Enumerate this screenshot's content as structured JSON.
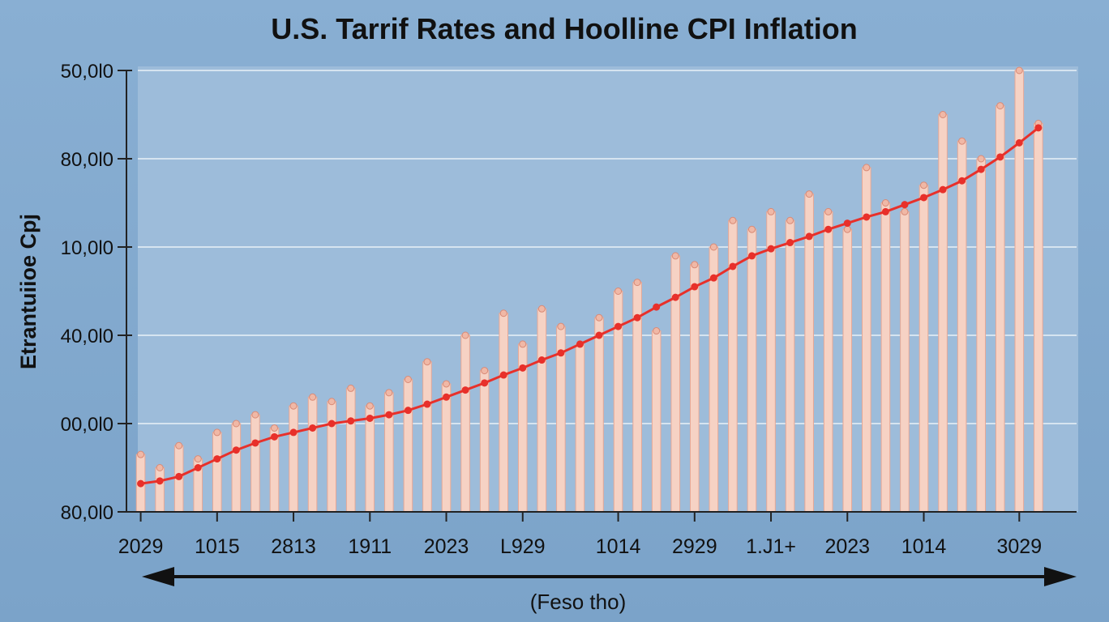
{
  "chart_data": {
    "type": "bar-line",
    "title": "U.S. Tarrif Rates and Hoolline CPI Inflation",
    "y_label": "Etrantuiioe Cpj",
    "x_label": "(Feso tho)",
    "xlim": [
      0,
      50
    ],
    "xticks": [
      {
        "value": 1,
        "label": "2029"
      },
      {
        "value": 5,
        "label": "1015"
      },
      {
        "value": 9,
        "label": "2813"
      },
      {
        "value": 13,
        "label": "1911"
      },
      {
        "value": 17,
        "label": "2023"
      },
      {
        "value": 21,
        "label": "L929"
      },
      {
        "value": 26,
        "label": "1014"
      },
      {
        "value": 30,
        "label": "2929"
      },
      {
        "value": 34,
        "label": "1.J1+"
      },
      {
        "value": 38,
        "label": "2023"
      },
      {
        "value": 42,
        "label": "1014"
      },
      {
        "value": 47,
        "label": "3029"
      }
    ],
    "ylim": [
      0,
      5
    ],
    "yticks": [
      {
        "value": 0,
        "label": "80,0l0"
      },
      {
        "value": 1,
        "label": "00,0l0"
      },
      {
        "value": 2,
        "label": "40,0l0"
      },
      {
        "value": 3,
        "label": "10,0l0"
      },
      {
        "value": 4,
        "label": "80,0l0"
      },
      {
        "value": 5,
        "label": "50,0l0"
      }
    ],
    "grid": true,
    "x": [
      1,
      2,
      3,
      4,
      5,
      6,
      7,
      8,
      9,
      10,
      11,
      12,
      13,
      14,
      15,
      16,
      17,
      18,
      19,
      20,
      21,
      22,
      23,
      24,
      25,
      26,
      27,
      28,
      29,
      30,
      31,
      32,
      33,
      34,
      35,
      36,
      37,
      38,
      39,
      40,
      41,
      42,
      43,
      44,
      45,
      46,
      47,
      48
    ],
    "series": [
      {
        "kind": "bar",
        "color": "#f6d2c4",
        "values": [
          0.65,
          0.5,
          0.75,
          0.6,
          0.9,
          1.0,
          1.1,
          0.95,
          1.2,
          1.3,
          1.25,
          1.4,
          1.2,
          1.35,
          1.5,
          1.7,
          1.45,
          2.0,
          1.6,
          2.25,
          1.9,
          2.3,
          2.1,
          1.9,
          2.2,
          2.5,
          2.6,
          2.05,
          2.9,
          2.8,
          3.0,
          3.3,
          3.2,
          3.4,
          3.3,
          3.6,
          3.4,
          3.2,
          3.9,
          3.5,
          3.4,
          3.7,
          4.5,
          4.2,
          4.0,
          4.6,
          5.0,
          4.4
        ]
      },
      {
        "kind": "line",
        "color": "#e8302a",
        "values": [
          0.32,
          0.35,
          0.4,
          0.5,
          0.6,
          0.7,
          0.78,
          0.85,
          0.9,
          0.95,
          1.0,
          1.03,
          1.06,
          1.1,
          1.15,
          1.22,
          1.3,
          1.38,
          1.46,
          1.55,
          1.63,
          1.72,
          1.8,
          1.9,
          2.0,
          2.1,
          2.2,
          2.32,
          2.43,
          2.55,
          2.65,
          2.78,
          2.9,
          2.98,
          3.05,
          3.12,
          3.2,
          3.27,
          3.34,
          3.4,
          3.48,
          3.56,
          3.65,
          3.75,
          3.88,
          4.02,
          4.18,
          4.35
        ]
      }
    ]
  }
}
